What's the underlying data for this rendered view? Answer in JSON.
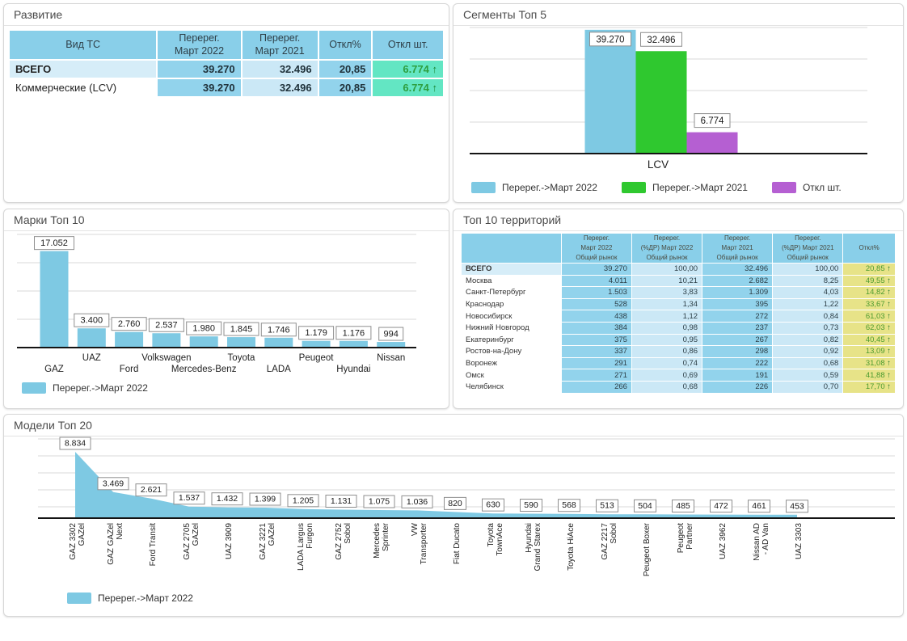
{
  "colors": {
    "bar_blue": "#7ec9e3",
    "bar_green": "#2fc82f",
    "bar_purple": "#b55fd2",
    "header_blue": "#89cfe9",
    "cell_blue_strong": "#92d3ec",
    "cell_blue_light": "#cbe8f6",
    "cell_label_highlight": "#d6edf8",
    "cell_teal": "#63e6c3",
    "cell_yellow": "#e7e388",
    "positive_green": "#2e9e3f",
    "axis_black": "#141414",
    "grid_gray": "#d8d8d8"
  },
  "panels": {
    "development": {
      "title": "Развитие",
      "table": {
        "headers": [
          "Вид ТС",
          "Перерег.\nМарт 2022",
          "Перерег.\nМарт 2021",
          "Откл%",
          "Откл шт."
        ],
        "rows": [
          {
            "label": "ВСЕГО",
            "bold": true,
            "reg_2022": "39.270",
            "reg_2021": "32.496",
            "dev_pct": "20,85",
            "dev_qty": "6.774",
            "trend": "up"
          },
          {
            "label": "Коммерческие (LCV)",
            "bold": false,
            "reg_2022": "39.270",
            "reg_2021": "32.496",
            "dev_pct": "20,85",
            "dev_qty": "6.774",
            "trend": "up"
          }
        ]
      }
    },
    "segments": {
      "title": "Сегменты Топ 5"
    },
    "brands": {
      "title": "Марки Топ 10"
    },
    "territories": {
      "title": "Топ 10 территорий",
      "table": {
        "headers": [
          "",
          "Перерег.\nМарт 2022\nОбщий рынок",
          "Перерег.\n(%ДР) Март 2022\nОбщий рынок",
          "Перерег.\nМарт 2021\nОбщий рынок",
          "Перерег.\n(%ДР) Март 2021\nОбщий рынок",
          "Откл%"
        ],
        "rows": [
          {
            "label": "ВСЕГО",
            "bold": true,
            "reg_2022": "39.270",
            "share_2022": "100,00",
            "reg_2021": "32.496",
            "share_2021": "100,00",
            "dev_pct": "20,85",
            "trend": "up"
          },
          {
            "label": "Москва",
            "bold": false,
            "reg_2022": "4.011",
            "share_2022": "10,21",
            "reg_2021": "2.682",
            "share_2021": "8,25",
            "dev_pct": "49,55",
            "trend": "up"
          },
          {
            "label": "Санкт-Петербург",
            "bold": false,
            "reg_2022": "1.503",
            "share_2022": "3,83",
            "reg_2021": "1.309",
            "share_2021": "4,03",
            "dev_pct": "14,82",
            "trend": "up"
          },
          {
            "label": "Краснодар",
            "bold": false,
            "reg_2022": "528",
            "share_2022": "1,34",
            "reg_2021": "395",
            "share_2021": "1,22",
            "dev_pct": "33,67",
            "trend": "up"
          },
          {
            "label": "Новосибирск",
            "bold": false,
            "reg_2022": "438",
            "share_2022": "1,12",
            "reg_2021": "272",
            "share_2021": "0,84",
            "dev_pct": "61,03",
            "trend": "up"
          },
          {
            "label": "Нижний Новгород",
            "bold": false,
            "reg_2022": "384",
            "share_2022": "0,98",
            "reg_2021": "237",
            "share_2021": "0,73",
            "dev_pct": "62,03",
            "trend": "up"
          },
          {
            "label": "Екатеринбург",
            "bold": false,
            "reg_2022": "375",
            "share_2022": "0,95",
            "reg_2021": "267",
            "share_2021": "0,82",
            "dev_pct": "40,45",
            "trend": "up"
          },
          {
            "label": "Ростов-на-Дону",
            "bold": false,
            "reg_2022": "337",
            "share_2022": "0,86",
            "reg_2021": "298",
            "share_2021": "0,92",
            "dev_pct": "13,09",
            "trend": "up"
          },
          {
            "label": "Воронеж",
            "bold": false,
            "reg_2022": "291",
            "share_2022": "0,74",
            "reg_2021": "222",
            "share_2021": "0,68",
            "dev_pct": "31,08",
            "trend": "up"
          },
          {
            "label": "Омск",
            "bold": false,
            "reg_2022": "271",
            "share_2022": "0,69",
            "reg_2021": "191",
            "share_2021": "0,59",
            "dev_pct": "41,88",
            "trend": "up"
          },
          {
            "label": "Челябинск",
            "bold": false,
            "reg_2022": "266",
            "share_2022": "0,68",
            "reg_2021": "226",
            "share_2021": "0,70",
            "dev_pct": "17,70",
            "trend": "up"
          }
        ]
      }
    },
    "models": {
      "title": "Модели Топ 20"
    }
  },
  "chart_data": [
    {
      "id": "segments",
      "type": "bar",
      "title": "Сегменты Топ 5",
      "categories": [
        "LCV"
      ],
      "series": [
        {
          "name": "Перерег.->Март 2022",
          "color": "#7ec9e3",
          "values": [
            39270
          ],
          "labels": [
            "39.270"
          ]
        },
        {
          "name": "Перерег.->Март 2021",
          "color": "#2fc82f",
          "values": [
            32496
          ],
          "labels": [
            "32.496"
          ]
        },
        {
          "name": "Откл шт.",
          "color": "#b55fd2",
          "values": [
            6774
          ],
          "labels": [
            "6.774"
          ]
        }
      ],
      "ylim": [
        0,
        40000
      ],
      "grid": true,
      "legend_position": "bottom"
    },
    {
      "id": "brands",
      "type": "bar",
      "title": "Марки Топ 10",
      "categories": [
        "GAZ",
        "UAZ",
        "Ford",
        "Volkswagen",
        "Mercedes-Benz",
        "Toyota",
        "LADA",
        "Peugeot",
        "Hyundai",
        "Nissan"
      ],
      "series": [
        {
          "name": "Перерег.->Март 2022",
          "color": "#7ec9e3",
          "values": [
            17052,
            3400,
            2760,
            2537,
            1980,
            1845,
            1746,
            1179,
            1176,
            994
          ],
          "labels": [
            "17.052",
            "3.400",
            "2.760",
            "2.537",
            "1.980",
            "1.845",
            "1.746",
            "1.179",
            "1.176",
            "994"
          ]
        }
      ],
      "ylim": [
        0,
        20000
      ],
      "grid": true,
      "legend_position": "bottom"
    },
    {
      "id": "models",
      "type": "area",
      "title": "Модели Топ 20",
      "categories": [
        "GAZ 3302 GAZel",
        "GAZ GAZel Next",
        "Ford Transit",
        "GAZ 2705 GAZel",
        "UAZ 3909",
        "GAZ 3221 GAZel",
        "LADA Largus Furgon",
        "GAZ 2752 Sobol",
        "Mercedes Sprinter",
        "VW Transporter",
        "Fiat Ducato",
        "Toyota TownAce",
        "Hyundai Grand Starex",
        "Toyota HiAce",
        "GAZ 2217 Sobol",
        "Peugeot Boxer",
        "Peugeot Partner",
        "UAZ 3962",
        "Nissan AD - AD Van",
        "UAZ 3303"
      ],
      "category_lines": [
        [
          "GAZ 3302",
          "GAZel"
        ],
        [
          "GAZ GAZel",
          "Next"
        ],
        [
          "Ford Transit"
        ],
        [
          "GAZ 2705",
          "GAZel"
        ],
        [
          "UAZ 3909"
        ],
        [
          "GAZ 3221",
          "GAZel"
        ],
        [
          "LADA Largus",
          "Furgon"
        ],
        [
          "GAZ 2752",
          "Sobol"
        ],
        [
          "Mercedes",
          "Sprinter"
        ],
        [
          "VW",
          "Transporter"
        ],
        [
          "Fiat Ducato"
        ],
        [
          "Toyota",
          "TownAce"
        ],
        [
          "Hyundai",
          "Grand Starex"
        ],
        [
          "Toyota HiAce"
        ],
        [
          "GAZ 2217",
          "Sobol"
        ],
        [
          "Peugeot Boxer"
        ],
        [
          "Peugeot",
          "Partner"
        ],
        [
          "UAZ 3962"
        ],
        [
          "Nissan AD",
          "- AD Van"
        ],
        [
          "UAZ 3303"
        ]
      ],
      "series": [
        {
          "name": "Перерег.->Март 2022",
          "color": "#7ec9e3",
          "values": [
            8834,
            3469,
            2621,
            1537,
            1432,
            1399,
            1205,
            1131,
            1075,
            1036,
            820,
            630,
            590,
            568,
            513,
            504,
            485,
            472,
            461,
            453
          ],
          "labels": [
            "8.834",
            "3.469",
            "2.621",
            "1.537",
            "1.432",
            "1.399",
            "1.205",
            "1.131",
            "1.075",
            "1.036",
            "820",
            "630",
            "590",
            "568",
            "513",
            "504",
            "485",
            "472",
            "461",
            "453"
          ]
        }
      ],
      "ylim": [
        0,
        10000
      ],
      "grid": true,
      "legend_position": "bottom"
    }
  ]
}
